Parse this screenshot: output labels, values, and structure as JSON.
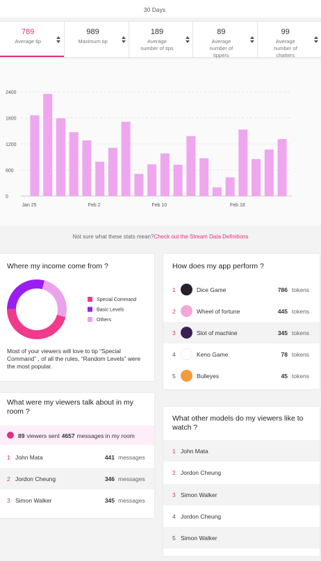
{
  "header": {
    "period": "30 Days"
  },
  "stats": [
    {
      "value": 789,
      "label": "Average tip"
    },
    {
      "value": 989,
      "label": "Maximum tip"
    },
    {
      "value": 189,
      "label": "Average number of tips"
    },
    {
      "value": 89,
      "label": "Average number of tippers"
    },
    {
      "value": 99,
      "label": "Average number of chatters"
    }
  ],
  "active_stat": 0,
  "chart_data": [
    {
      "type": "bar",
      "categories": [
        "Jan 25",
        null,
        null,
        null,
        null,
        "Feb 2",
        null,
        null,
        null,
        null,
        "Feb 10",
        null,
        null,
        null,
        null,
        null,
        "Feb 18",
        null,
        null,
        null
      ],
      "values": [
        1860,
        2350,
        1790,
        1470,
        1280,
        790,
        1110,
        1710,
        510,
        730,
        980,
        720,
        1380,
        870,
        200,
        430,
        1530,
        850,
        1070,
        1310
      ],
      "color": "#eea6ee",
      "ylim": [
        0,
        2400
      ],
      "yticks": [
        0,
        600,
        1200,
        1800,
        2400
      ],
      "grid": true
    },
    {
      "type": "pie",
      "categories": [
        "Special Command",
        "Basic Levels",
        "Others"
      ],
      "values": [
        46,
        29,
        25
      ],
      "colors": [
        "#f23a8c",
        "#9a1ef0",
        "#eaa2ea"
      ]
    }
  ],
  "footer_note": {
    "text": "Not sure what these stats mean?",
    "link": "Check out the Stream Data Definitions"
  },
  "income": {
    "title": "Where my income come from ?",
    "note": "Most of your viewers will love to tip “Special Command” , of all the rules, “Random Levels” were the most popular."
  },
  "apps": {
    "title": "How does my app perform ?",
    "unit": "tokens",
    "items": [
      {
        "rank": 1,
        "name": "Dice Game",
        "tokens": 786
      },
      {
        "rank": 2,
        "name": "Wheel of fortune",
        "tokens": 445
      },
      {
        "rank": 3,
        "name": "Slot of machine",
        "tokens": 345
      },
      {
        "rank": 4,
        "name": "Keno Game",
        "tokens": 78
      },
      {
        "rank": 5,
        "name": "Bulleyes",
        "tokens": 45
      }
    ]
  },
  "talk": {
    "title": "What were my viewers talk about in my room ?",
    "viewers": 89,
    "text1": "viewers sent",
    "messages": 4657,
    "text2": "messages in my room",
    "unit": "messages",
    "items": [
      {
        "rank": 1,
        "name": "John Mata",
        "messages": 441
      },
      {
        "rank": 2,
        "name": "Jordon Cheung",
        "messages": 346
      },
      {
        "rank": 3,
        "name": "Simon Walker",
        "messages": 345
      }
    ]
  },
  "models": {
    "title": "What other models do my viewers like to watch ?",
    "items": [
      {
        "rank": 1,
        "name": "John Mata"
      },
      {
        "rank": 2,
        "name": "Jordon Cheung"
      },
      {
        "rank": 3,
        "name": "Simon Walker"
      },
      {
        "rank": 4,
        "name": "Jordon Cheung"
      },
      {
        "rank": 5,
        "name": "Simon Walker"
      }
    ]
  }
}
